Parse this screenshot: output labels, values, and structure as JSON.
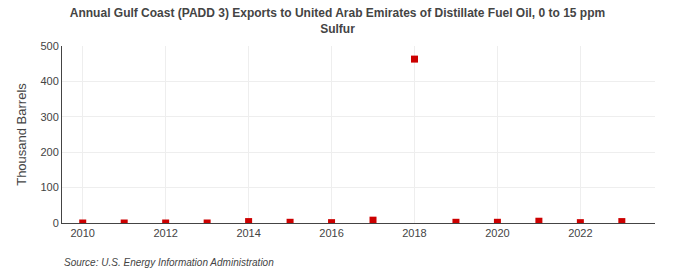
{
  "chart_data": {
    "type": "scatter",
    "title": "Annual Gulf Coast (PADD 3) Exports to United Arab Emirates of Distillate Fuel Oil, 0 to 15 ppm\nSulfur",
    "ylabel": "Thousand Barrels",
    "source": "Source: U.S. Energy Information Administration",
    "x": [
      2010,
      2011,
      2012,
      2013,
      2014,
      2015,
      2016,
      2017,
      2018,
      2019,
      2020,
      2021,
      2022,
      2023
    ],
    "values": [
      0,
      0,
      0,
      0,
      4,
      2,
      1,
      8,
      463,
      2,
      2,
      5,
      1,
      4
    ],
    "color": "#cc0000",
    "marker": "square",
    "xlim": [
      2009.5,
      2023.8
    ],
    "xticks": [
      2010,
      2012,
      2014,
      2016,
      2018,
      2020,
      2022
    ],
    "ylim": [
      0,
      500
    ],
    "yticks": [
      0,
      100,
      200,
      300,
      400,
      500
    ],
    "grid": true
  }
}
